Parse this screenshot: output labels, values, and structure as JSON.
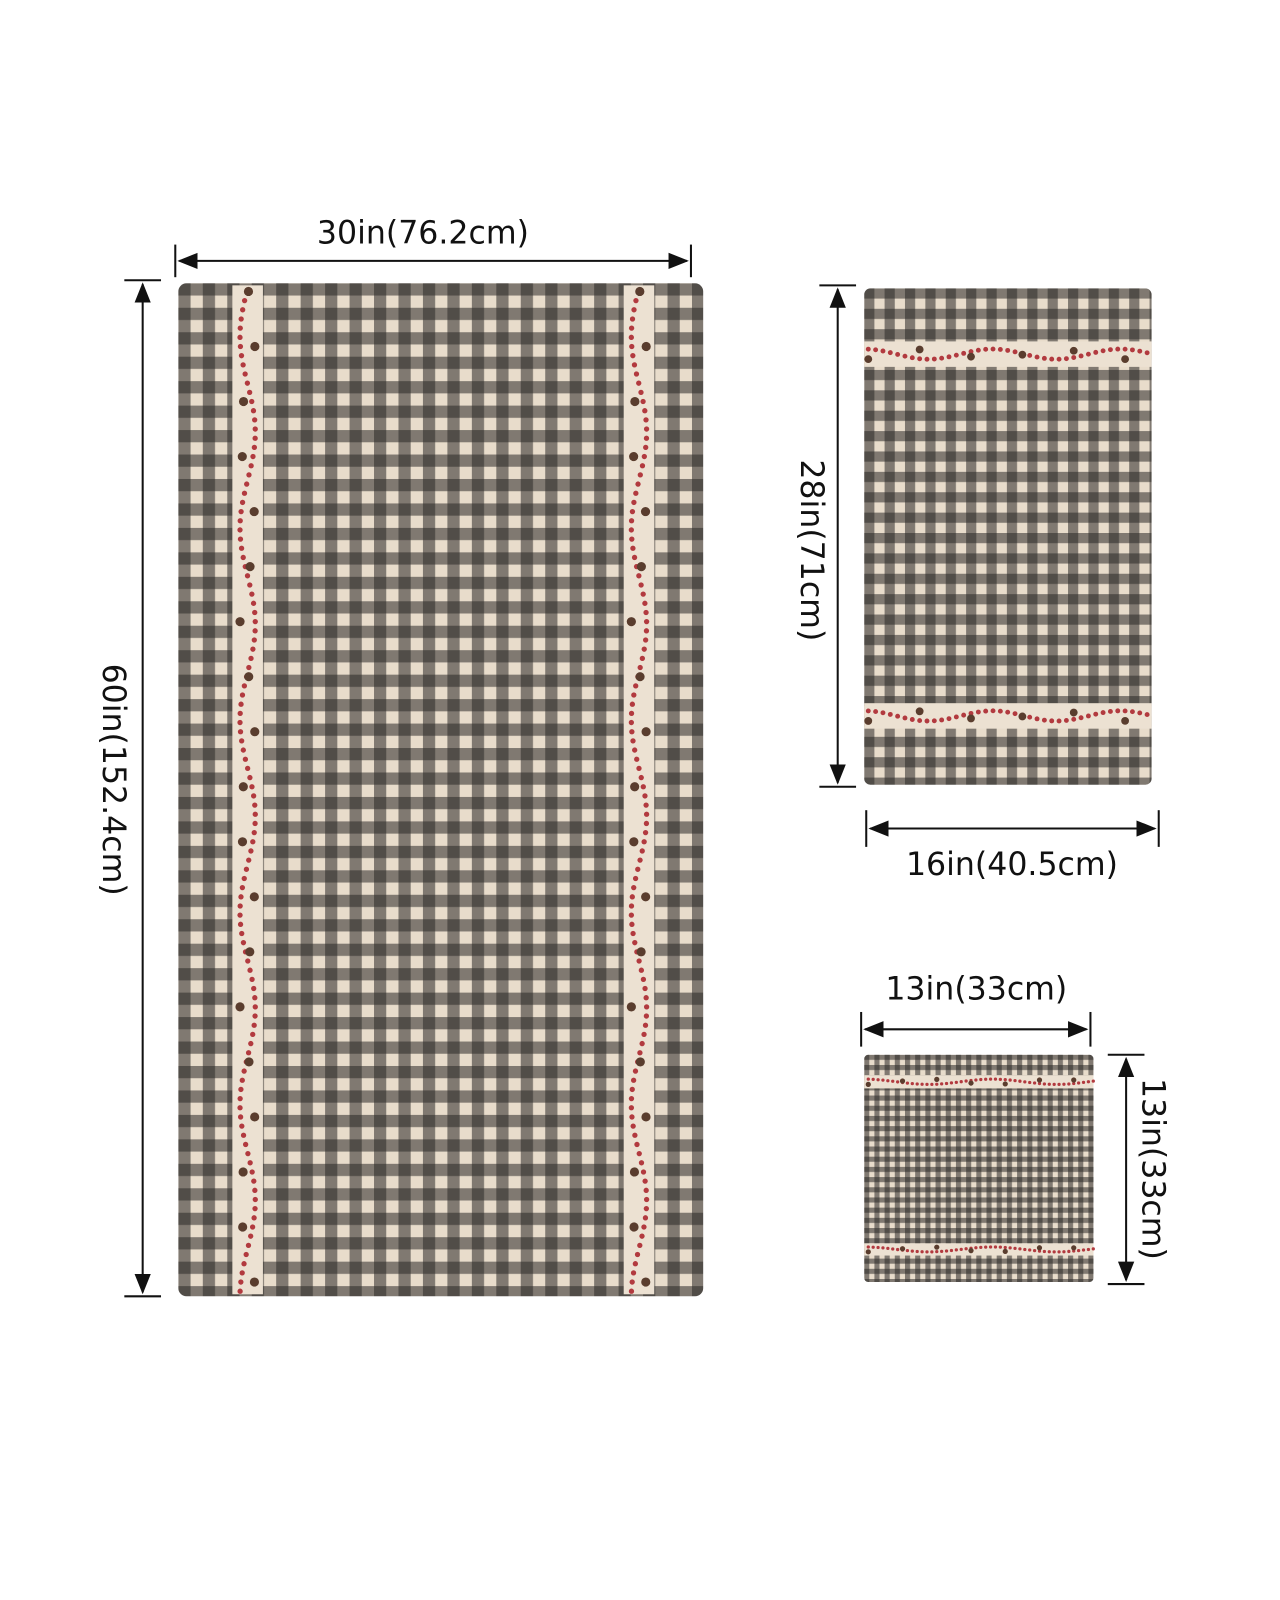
{
  "towels": [
    {
      "width_label": "30in(76.2cm)",
      "height_label": "60in(152.4cm)"
    },
    {
      "width_label": "16in(40.5cm)",
      "height_label": "28in(71cm)"
    },
    {
      "width_label": "13in(33cm)",
      "height_label": "13in(33cm)"
    }
  ]
}
